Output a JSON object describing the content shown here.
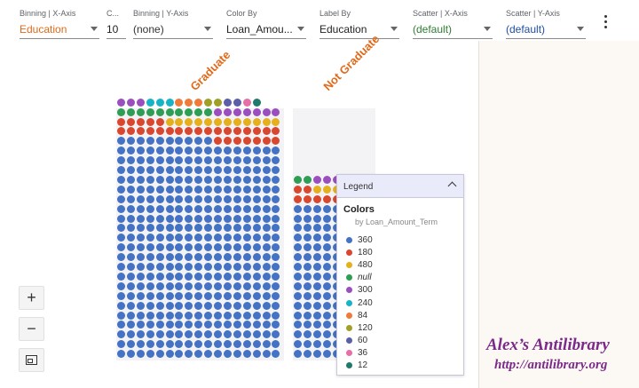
{
  "toolbar": {
    "fields": [
      {
        "key": "binning-x",
        "label": "Binning | X-Axis",
        "value": "Education",
        "value_color": "#e0691a"
      },
      {
        "key": "count",
        "label": "C...",
        "value": "10",
        "value_color": "#222222"
      },
      {
        "key": "binning-y",
        "label": "Binning | Y-Axis",
        "value": "(none)",
        "value_color": "#333333"
      },
      {
        "key": "color-by",
        "label": "Color By",
        "value": "Loan_Amou...",
        "value_color": "#222222"
      },
      {
        "key": "label-by",
        "label": "Label By",
        "value": "Education",
        "value_color": "#222222"
      },
      {
        "key": "scatter-x",
        "label": "Scatter | X-Axis",
        "value": "(default)",
        "value_color": "#2e7d32"
      },
      {
        "key": "scatter-y",
        "label": "Scatter | Y-Axis",
        "value": "(default)",
        "value_color": "#1e4fa0"
      }
    ]
  },
  "facets": [
    "Graduate",
    "Not Graduate"
  ],
  "chart_data": {
    "type": "unit-chart",
    "facet_field": "Education",
    "color_field": "Loan_Amount_Term",
    "columns": [
      {
        "name": "Graduate",
        "counts": {
          "360": 384,
          "180": 29,
          "480": 12,
          "null": 10,
          "300": 10,
          "240": 3,
          "84": 3,
          "120": 2,
          "60": 2,
          "36": 1,
          "12": 1
        }
      },
      {
        "name": "Not Graduate",
        "counts": {
          "360": 128,
          "180": 10,
          "480": 4,
          "null": 4,
          "300": 3,
          "240": 1
        }
      }
    ]
  },
  "legend": {
    "title": "Legend",
    "heading": "Colors",
    "subtitle": "by Loan_Amount_Term",
    "items": [
      {
        "label": "360",
        "color": "#4472c4"
      },
      {
        "label": "180",
        "color": "#d9472f"
      },
      {
        "label": "480",
        "color": "#e6b01c"
      },
      {
        "label": "null",
        "color": "#2e9e55"
      },
      {
        "label": "300",
        "color": "#9b4fbf"
      },
      {
        "label": "240",
        "color": "#17b3c6"
      },
      {
        "label": "84",
        "color": "#f07a3a"
      },
      {
        "label": "120",
        "color": "#a0a028"
      },
      {
        "label": "60",
        "color": "#5b5fa8"
      },
      {
        "label": "36",
        "color": "#e86ea6"
      },
      {
        "label": "12",
        "color": "#1f7a6a"
      }
    ]
  },
  "watermark": {
    "title": "Alex’s Antilibrary",
    "url": "http://antilibrary.org"
  }
}
